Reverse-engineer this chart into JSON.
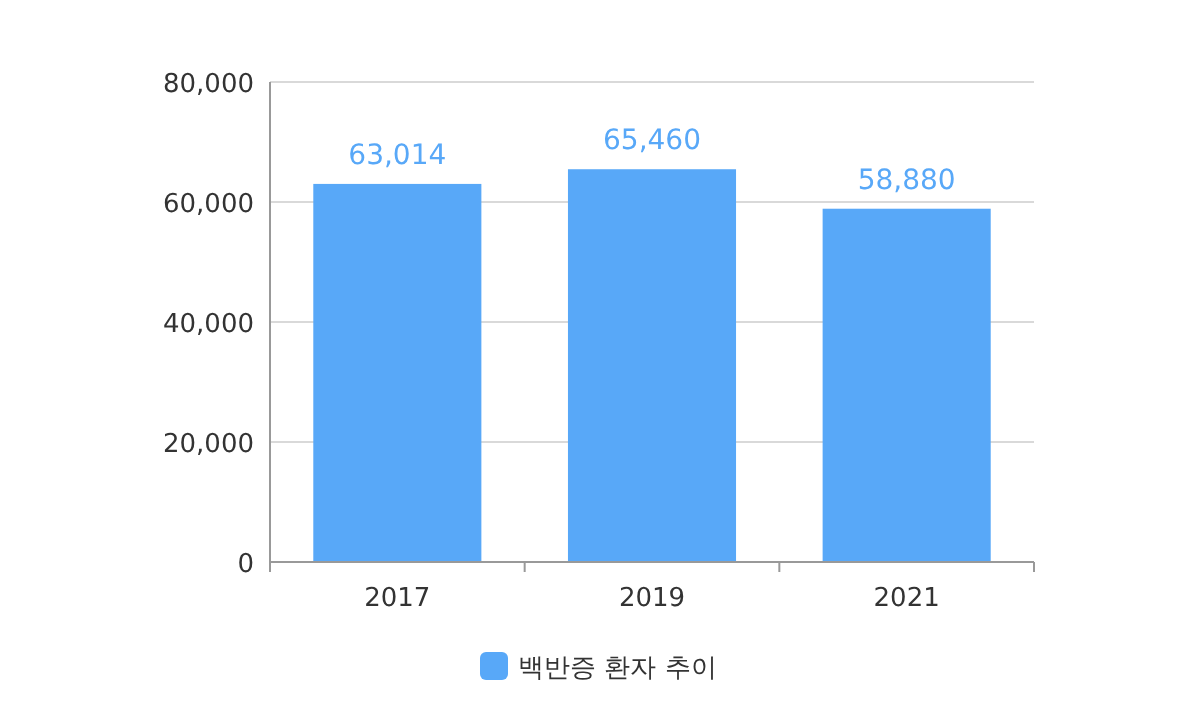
{
  "chart_data": {
    "type": "bar",
    "categories": [
      "2017",
      "2019",
      "2021"
    ],
    "series": [
      {
        "name": "백반증 환자 추이",
        "color": "#58a8f8",
        "values": [
          63014,
          65460,
          58880
        ],
        "value_labels": [
          "63,014",
          "65,460",
          "58,880"
        ]
      }
    ],
    "ylim": [
      0,
      80000
    ],
    "yticks": [
      {
        "value": 0,
        "label": "0"
      },
      {
        "value": 20000,
        "label": "20,000"
      },
      {
        "value": 40000,
        "label": "40,000"
      },
      {
        "value": 60000,
        "label": "60,000"
      },
      {
        "value": 80000,
        "label": "80,000"
      }
    ],
    "grid": "y",
    "legend": "bottom"
  }
}
